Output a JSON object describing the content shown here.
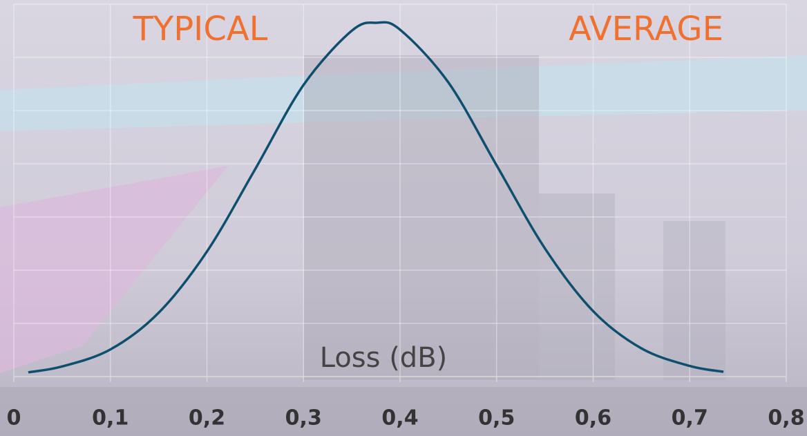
{
  "chart_data": {
    "type": "line",
    "annotations": [
      "TYPICAL",
      "AVERAGE"
    ],
    "x_label": "Loss (dB)",
    "x": [
      0.015,
      0.05,
      0.1,
      0.15,
      0.2,
      0.25,
      0.3,
      0.35,
      0.376,
      0.4,
      0.45,
      0.5,
      0.55,
      0.6,
      0.65,
      0.7,
      0.735
    ],
    "values": [
      0.08,
      0.19,
      0.51,
      1.2,
      2.35,
      3.9,
      5.48,
      6.5,
      6.65,
      6.52,
      5.53,
      3.97,
      2.41,
      1.23,
      0.53,
      0.2,
      0.09
    ],
    "color": "#0f4f6e",
    "annotation_color": "#f07030",
    "xlim": [
      0,
      0.8
    ],
    "xticks": [
      0,
      {
        "value": 0.1,
        "label": "0,1"
      },
      {
        "value": 0.2,
        "label": "0,2"
      },
      {
        "value": 0.3,
        "label": "0,3"
      },
      {
        "value": 0.4,
        "label": "0,4"
      },
      {
        "value": 0.5,
        "label": "0,5"
      },
      {
        "value": 0.6,
        "label": "0,6"
      },
      {
        "value": 0.7,
        "label": "0,7"
      },
      {
        "value": 0.8,
        "label": "0,8"
      }
    ],
    "ylim": [
      0,
      7
    ],
    "yticks": [
      0,
      1,
      2,
      3,
      4,
      5,
      6,
      7
    ],
    "grid": true
  }
}
